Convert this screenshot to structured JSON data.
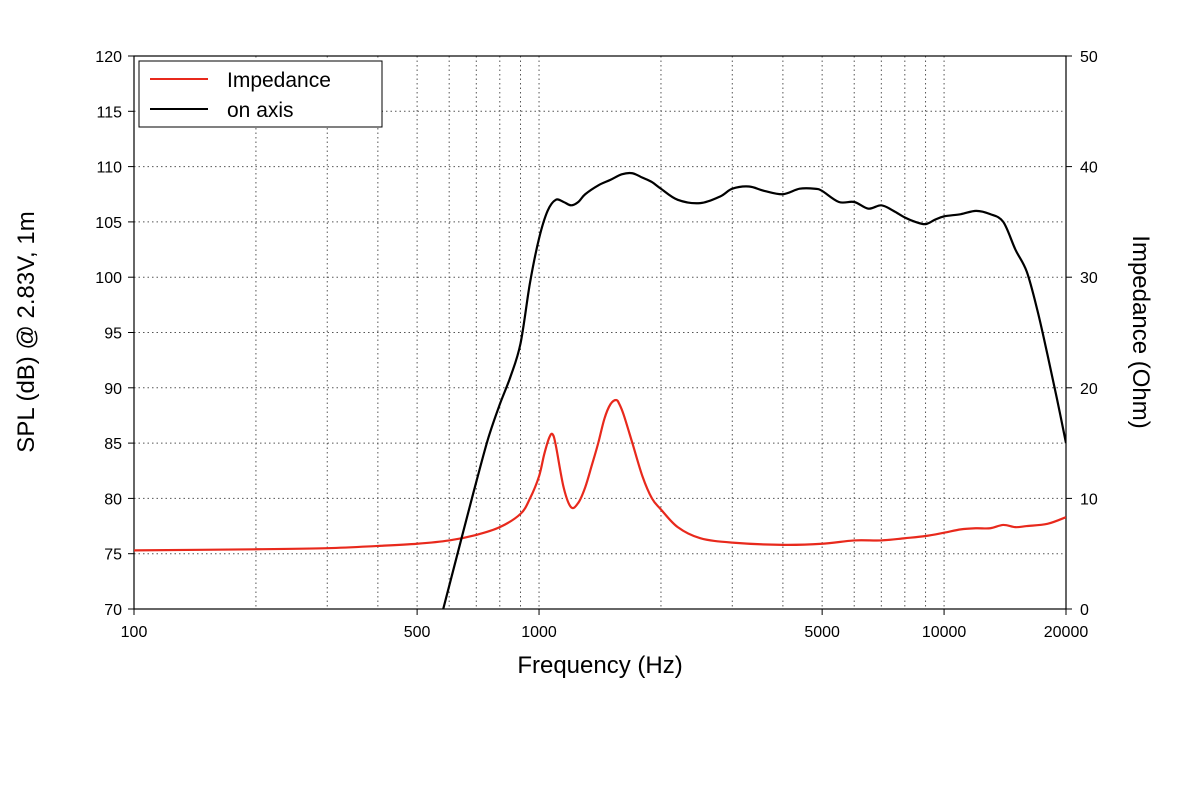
{
  "chart_data": {
    "type": "line",
    "xlabel": "Frequency (Hz)",
    "ylabel_left": "SPL (dB) @ 2.83V, 1m",
    "ylabel_right": "Impedance (Ohm)",
    "x_scale": "log",
    "xlim": [
      100,
      20000
    ],
    "ylim_left": [
      70,
      120
    ],
    "ylim_right": [
      0,
      50
    ],
    "grid": true,
    "legend_position": "top-left",
    "x_tick_labels": [
      "100",
      "500",
      "1000",
      "5000",
      "10000",
      "20000"
    ],
    "y_left_tick_labels": [
      "70",
      "75",
      "80",
      "85",
      "90",
      "95",
      "100",
      "105",
      "110",
      "115",
      "120"
    ],
    "y_right_tick_labels": [
      "0",
      "10",
      "20",
      "30",
      "40",
      "50"
    ],
    "series": [
      {
        "name": "Impedance",
        "axis": "right",
        "color": "#e8291c",
        "x": [
          100,
          200,
          300,
          400,
          500,
          600,
          700,
          800,
          900,
          950,
          1000,
          1030,
          1060,
          1080,
          1100,
          1150,
          1200,
          1250,
          1300,
          1350,
          1400,
          1450,
          1500,
          1550,
          1580,
          1620,
          1700,
          1800,
          1900,
          2000,
          2200,
          2500,
          3000,
          4000,
          5000,
          6000,
          7000,
          8000,
          9000,
          10000,
          11000,
          12000,
          13000,
          14000,
          15000,
          16000,
          18000,
          20000
        ],
        "values": [
          5.3,
          5.4,
          5.5,
          5.7,
          5.9,
          6.2,
          6.7,
          7.4,
          8.6,
          10.0,
          12.0,
          14.0,
          15.5,
          15.8,
          14.8,
          11.0,
          9.2,
          9.6,
          11.0,
          13.0,
          15.0,
          17.2,
          18.5,
          18.9,
          18.5,
          17.5,
          15.0,
          12.0,
          10.0,
          9.0,
          7.4,
          6.4,
          6.0,
          5.8,
          5.9,
          6.2,
          6.2,
          6.4,
          6.6,
          6.9,
          7.2,
          7.3,
          7.3,
          7.6,
          7.4,
          7.5,
          7.7,
          8.3
        ]
      },
      {
        "name": "on axis",
        "axis": "left",
        "color": "#000000",
        "x": [
          580,
          650,
          700,
          750,
          800,
          850,
          900,
          950,
          1000,
          1050,
          1100,
          1150,
          1200,
          1250,
          1300,
          1400,
          1500,
          1600,
          1700,
          1800,
          1900,
          2000,
          2200,
          2500,
          2800,
          3000,
          3300,
          3600,
          4000,
          4400,
          4800,
          5000,
          5500,
          6000,
          6500,
          7000,
          7500,
          8000,
          8500,
          9000,
          9500,
          10000,
          11000,
          12000,
          13000,
          14000,
          15000,
          16000,
          17000,
          18000,
          19000,
          20000
        ],
        "values": [
          70.0,
          77.0,
          81.5,
          85.5,
          88.5,
          91.0,
          94.0,
          99.5,
          103.5,
          106.0,
          107.0,
          106.8,
          106.5,
          106.8,
          107.5,
          108.3,
          108.8,
          109.3,
          109.4,
          109.0,
          108.6,
          108.0,
          107.0,
          106.7,
          107.3,
          108.0,
          108.2,
          107.8,
          107.5,
          108.0,
          108.0,
          107.8,
          106.8,
          106.8,
          106.2,
          106.5,
          106.0,
          105.4,
          105.0,
          104.8,
          105.2,
          105.5,
          105.7,
          106.0,
          105.7,
          105.0,
          102.5,
          100.5,
          97.0,
          93.0,
          89.0,
          85.0
        ]
      }
    ]
  }
}
